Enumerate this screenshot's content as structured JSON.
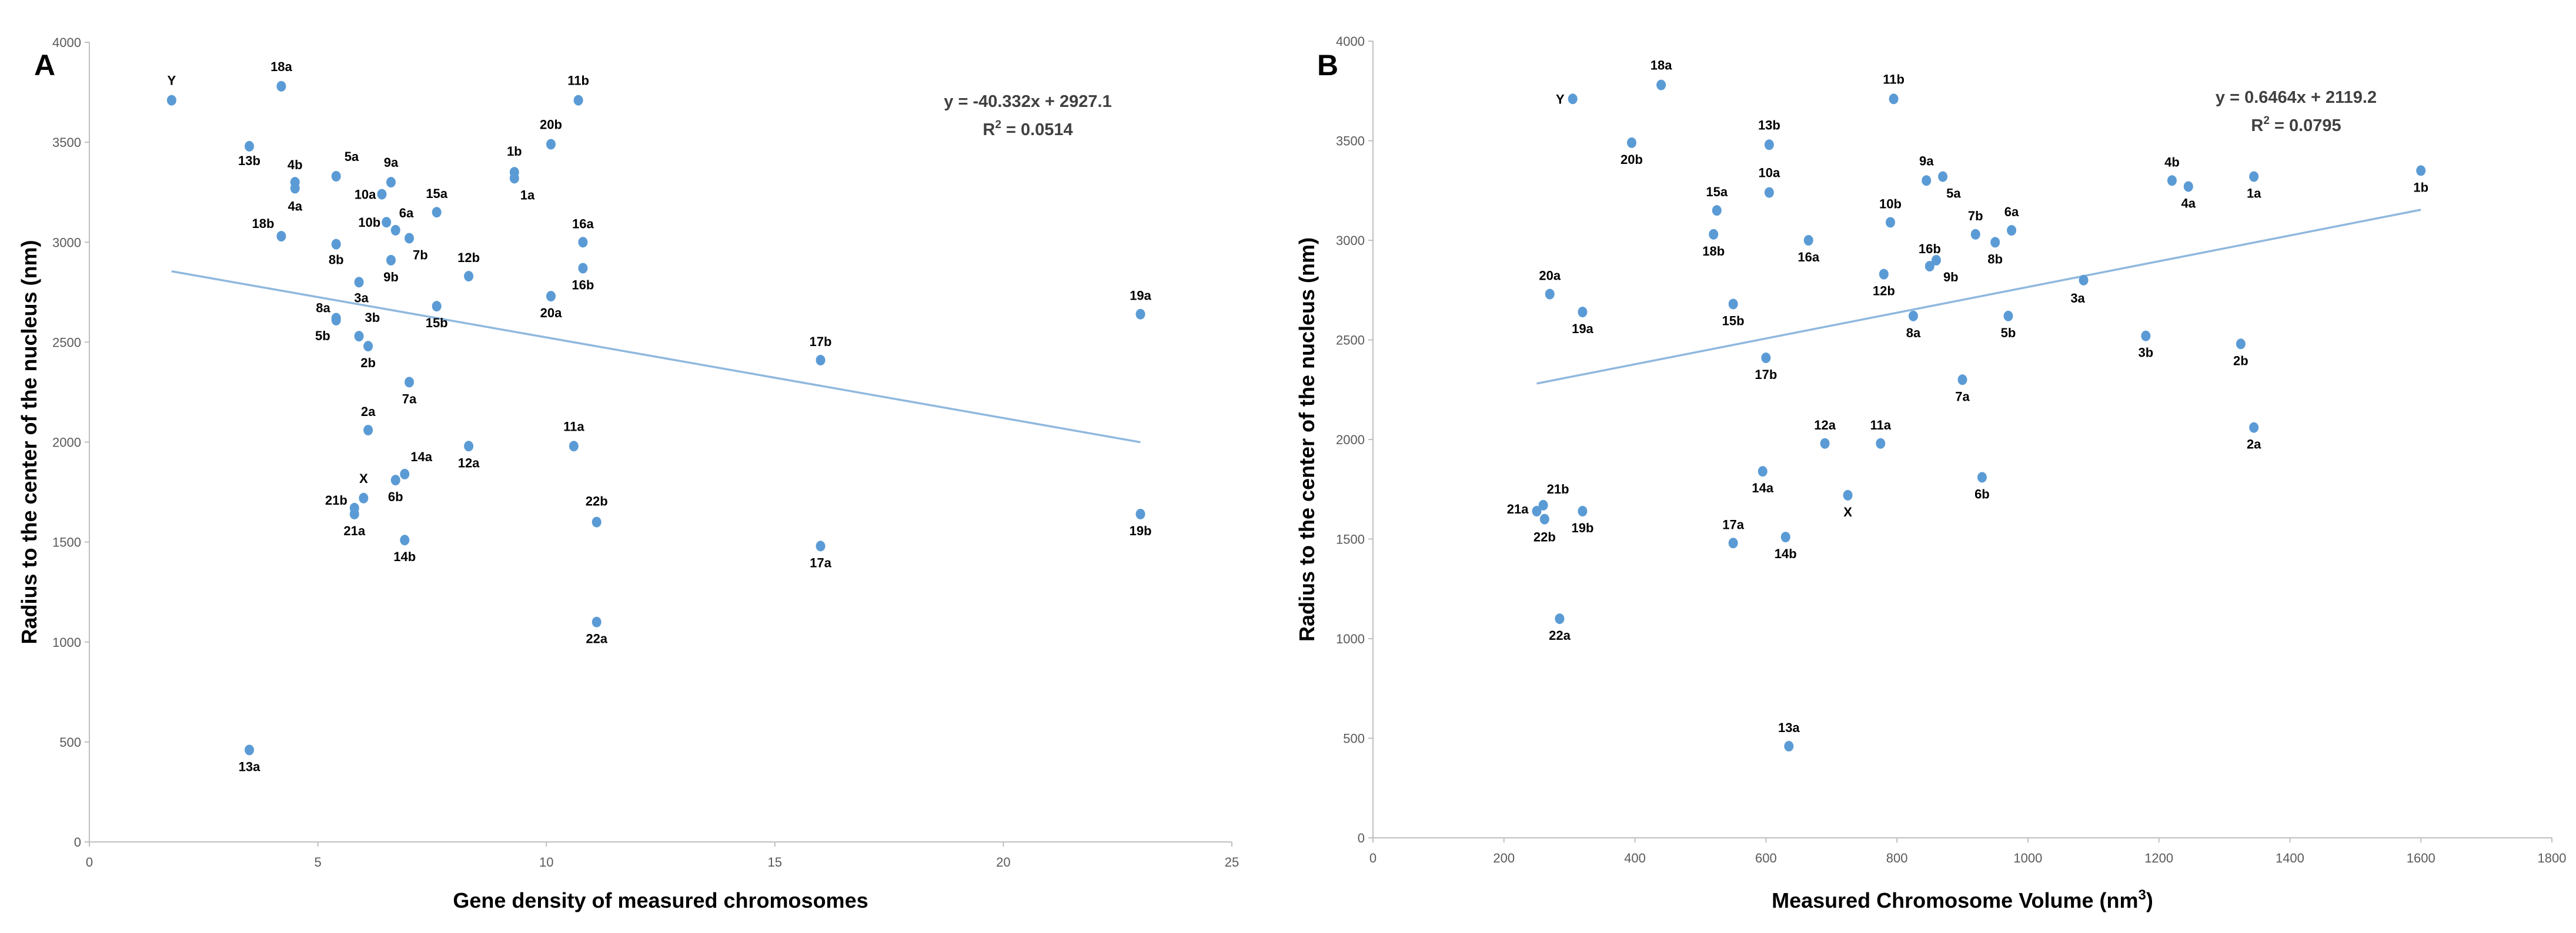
{
  "chart_data": [
    {
      "type": "scatter",
      "panel_label": "A",
      "xlabel": "Gene density of measured chromosomes",
      "ylabel": "Radius to the center of the nucleus (nm)",
      "xlim": [
        0,
        25
      ],
      "ylim": [
        0,
        4000
      ],
      "xticks": [
        0,
        5,
        10,
        15,
        20,
        25
      ],
      "yticks": [
        0,
        500,
        1000,
        1500,
        2000,
        2500,
        3000,
        3500,
        4000
      ],
      "grid": false,
      "trendline": {
        "equation": "y = -40.332x + 2927.1",
        "r2_prefix": "R",
        "r2_exp": "2",
        "r2_value": " = 0.0514",
        "slope": -40.332,
        "intercept": 2927.1,
        "x_range": [
          1.8,
          23
        ]
      },
      "points": [
        {
          "label": "Y",
          "x": 1.8,
          "y": 3710
        },
        {
          "label": "18a",
          "x": 4.2,
          "y": 3780
        },
        {
          "label": "13b",
          "x": 3.5,
          "y": 3480
        },
        {
          "label": "4b",
          "x": 4.5,
          "y": 3300
        },
        {
          "label": "4a",
          "x": 4.5,
          "y": 3270
        },
        {
          "label": "5a",
          "x": 5.4,
          "y": 3330
        },
        {
          "label": "9a",
          "x": 6.6,
          "y": 3300
        },
        {
          "label": "10a",
          "x": 6.4,
          "y": 3240
        },
        {
          "label": "18b",
          "x": 4.2,
          "y": 3030
        },
        {
          "label": "8b",
          "x": 5.4,
          "y": 2990
        },
        {
          "label": "10b",
          "x": 6.5,
          "y": 3100
        },
        {
          "label": "6a",
          "x": 6.7,
          "y": 3060
        },
        {
          "label": "7b",
          "x": 7.0,
          "y": 3020
        },
        {
          "label": "15a",
          "x": 7.6,
          "y": 3150
        },
        {
          "label": "9b",
          "x": 6.6,
          "y": 2910
        },
        {
          "label": "12b",
          "x": 8.3,
          "y": 2830
        },
        {
          "label": "3a",
          "x": 5.9,
          "y": 2800
        },
        {
          "label": "8a",
          "x": 5.4,
          "y": 2620
        },
        {
          "label": "3b",
          "x": 5.9,
          "y": 2530
        },
        {
          "label": "5b",
          "x": 5.4,
          "y": 2610
        },
        {
          "label": "2b",
          "x": 6.1,
          "y": 2480
        },
        {
          "label": "15b",
          "x": 7.6,
          "y": 2680
        },
        {
          "label": "7a",
          "x": 7.0,
          "y": 2300
        },
        {
          "label": "1b",
          "x": 9.3,
          "y": 3350
        },
        {
          "label": "1a",
          "x": 9.3,
          "y": 3320
        },
        {
          "label": "11b",
          "x": 10.7,
          "y": 3710
        },
        {
          "label": "20b",
          "x": 10.1,
          "y": 3490
        },
        {
          "label": "16a",
          "x": 10.8,
          "y": 3000
        },
        {
          "label": "16b",
          "x": 10.8,
          "y": 2870
        },
        {
          "label": "20a",
          "x": 10.1,
          "y": 2730
        },
        {
          "label": "2a",
          "x": 6.1,
          "y": 2060
        },
        {
          "label": "14a",
          "x": 6.9,
          "y": 1840
        },
        {
          "label": "X",
          "x": 6.0,
          "y": 1720
        },
        {
          "label": "6b",
          "x": 6.7,
          "y": 1810
        },
        {
          "label": "21b",
          "x": 5.8,
          "y": 1670
        },
        {
          "label": "21a",
          "x": 5.8,
          "y": 1640
        },
        {
          "label": "14b",
          "x": 6.9,
          "y": 1510
        },
        {
          "label": "12a",
          "x": 8.3,
          "y": 1980
        },
        {
          "label": "11a",
          "x": 10.6,
          "y": 1980
        },
        {
          "label": "22b",
          "x": 11.1,
          "y": 1600
        },
        {
          "label": "22a",
          "x": 11.1,
          "y": 1100
        },
        {
          "label": "13a",
          "x": 3.5,
          "y": 460
        },
        {
          "label": "17b",
          "x": 16.0,
          "y": 2410
        },
        {
          "label": "17a",
          "x": 16.0,
          "y": 1480
        },
        {
          "label": "19a",
          "x": 23.0,
          "y": 2640
        },
        {
          "label": "19b",
          "x": 23.0,
          "y": 1640
        }
      ]
    },
    {
      "type": "scatter",
      "panel_label": "B",
      "xlabel": "Measured Chromosome Volume (nm",
      "xlabel_exp": "3",
      "xlabel_close": ")",
      "ylabel": "Radius to the center of the nucleus (nm)",
      "xlim": [
        0,
        1800
      ],
      "ylim": [
        0,
        4000
      ],
      "xticks": [
        0,
        200,
        400,
        600,
        800,
        1000,
        1200,
        1400,
        1600,
        1800
      ],
      "yticks": [
        0,
        500,
        1000,
        1500,
        2000,
        2500,
        3000,
        3500,
        4000
      ],
      "grid": false,
      "trendline": {
        "equation": "y = 0.6464x + 2119.2",
        "r2_prefix": "R",
        "r2_exp": "2",
        "r2_value": " = 0.0795",
        "slope": 0.6464,
        "intercept": 2119.2,
        "x_range": [
          250,
          1600
        ]
      },
      "points": [
        {
          "label": "Y",
          "x": 305,
          "y": 3710
        },
        {
          "label": "18a",
          "x": 440,
          "y": 3780
        },
        {
          "label": "20b",
          "x": 395,
          "y": 3490
        },
        {
          "label": "13b",
          "x": 605,
          "y": 3480
        },
        {
          "label": "11b",
          "x": 795,
          "y": 3710
        },
        {
          "label": "10a",
          "x": 605,
          "y": 3240
        },
        {
          "label": "15a",
          "x": 525,
          "y": 3150
        },
        {
          "label": "18b",
          "x": 520,
          "y": 3030
        },
        {
          "label": "16a",
          "x": 665,
          "y": 3000
        },
        {
          "label": "9a",
          "x": 845,
          "y": 3300
        },
        {
          "label": "5a",
          "x": 870,
          "y": 3320
        },
        {
          "label": "10b",
          "x": 790,
          "y": 3090
        },
        {
          "label": "7b",
          "x": 920,
          "y": 3030
        },
        {
          "label": "6a",
          "x": 975,
          "y": 3050
        },
        {
          "label": "8b",
          "x": 950,
          "y": 2990
        },
        {
          "label": "16b",
          "x": 850,
          "y": 2870
        },
        {
          "label": "9b",
          "x": 860,
          "y": 2900
        },
        {
          "label": "12b",
          "x": 780,
          "y": 2830
        },
        {
          "label": "3a",
          "x": 1085,
          "y": 2800
        },
        {
          "label": "4b",
          "x": 1220,
          "y": 3300
        },
        {
          "label": "4a",
          "x": 1245,
          "y": 3270
        },
        {
          "label": "1a",
          "x": 1345,
          "y": 3320
        },
        {
          "label": "1b",
          "x": 1600,
          "y": 3350
        },
        {
          "label": "20a",
          "x": 270,
          "y": 2730
        },
        {
          "label": "19a",
          "x": 320,
          "y": 2640
        },
        {
          "label": "15b",
          "x": 550,
          "y": 2680
        },
        {
          "label": "8a",
          "x": 825,
          "y": 2620
        },
        {
          "label": "5b",
          "x": 970,
          "y": 2620
        },
        {
          "label": "17b",
          "x": 600,
          "y": 2410
        },
        {
          "label": "7a",
          "x": 900,
          "y": 2300
        },
        {
          "label": "3b",
          "x": 1180,
          "y": 2520
        },
        {
          "label": "2b",
          "x": 1325,
          "y": 2480
        },
        {
          "label": "2a",
          "x": 1345,
          "y": 2060
        },
        {
          "label": "12a",
          "x": 690,
          "y": 1980
        },
        {
          "label": "11a",
          "x": 775,
          "y": 1980
        },
        {
          "label": "14a",
          "x": 595,
          "y": 1840
        },
        {
          "label": "6b",
          "x": 930,
          "y": 1810
        },
        {
          "label": "X",
          "x": 725,
          "y": 1720
        },
        {
          "label": "21b",
          "x": 260,
          "y": 1670
        },
        {
          "label": "21a",
          "x": 250,
          "y": 1640
        },
        {
          "label": "22b",
          "x": 262,
          "y": 1600
        },
        {
          "label": "19b",
          "x": 320,
          "y": 1640
        },
        {
          "label": "17a",
          "x": 550,
          "y": 1480
        },
        {
          "label": "14b",
          "x": 630,
          "y": 1510
        },
        {
          "label": "22a",
          "x": 285,
          "y": 1100
        },
        {
          "label": "13a",
          "x": 635,
          "y": 460
        }
      ]
    }
  ]
}
